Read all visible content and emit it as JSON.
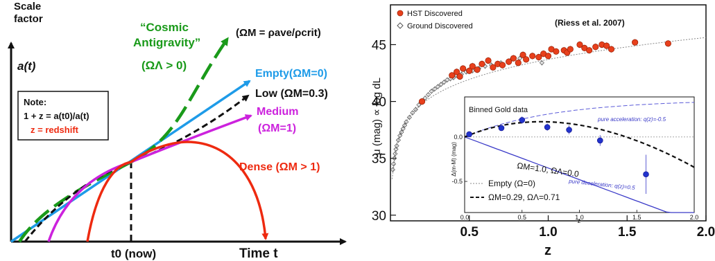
{
  "chart_data": [
    {
      "type": "line",
      "panel": "left",
      "ylabel_line1": "Scale",
      "ylabel_line2": "factor",
      "ylabel_symbol": "a(t)",
      "xlabel": "Time t",
      "t0_label": "t0 (now)",
      "formula": "(ΩM = ρave/ρcrit)",
      "note_title": "Note:",
      "note_line1": "1 + z = a(t0)/a(t)",
      "note_line2": "z = redshift",
      "colors": {
        "cosmic": "#1a9a1a",
        "empty": "#1e9be8",
        "low": "#111111",
        "medium": "#cc22dd",
        "dense": "#ee2a10"
      },
      "series": [
        {
          "name": "“Cosmic Antigravity” (ΩΛ > 0)",
          "label_line1": "“Cosmic",
          "label_line2": "Antigravity”",
          "label_line3": "(ΩΛ > 0)",
          "style": "dashed"
        },
        {
          "name": "Empty(ΩM=0)",
          "label_line1": "Empty(ΩM=0)",
          "style": "solid"
        },
        {
          "name": "Low (ΩM=0.3)",
          "label_line1": "Low (ΩM=0.3)",
          "style": "dashed"
        },
        {
          "name": "Medium (ΩM=1)",
          "label_line1": "Medium",
          "label_line2": "(ΩM=1)",
          "style": "solid"
        },
        {
          "name": "Dense (ΩM > 1)",
          "label_line1": "Dense (ΩM > 1)",
          "style": "solid"
        }
      ]
    },
    {
      "type": "scatter",
      "panel": "right",
      "xlabel": "z",
      "ylabel": "μ (mag) ∝ log dL",
      "xlim": [
        0,
        2.0
      ],
      "ylim": [
        29.5,
        48.5
      ],
      "xticks": [
        0.5,
        1.0,
        1.5,
        2.0
      ],
      "yticks": [
        30,
        35,
        40,
        45
      ],
      "citation": "(Riess et al. 2007)",
      "legend": [
        "HST Discovered",
        "Ground Discovered"
      ],
      "hst_points": [
        [
          0.2,
          40.0
        ],
        [
          0.39,
          42.3
        ],
        [
          0.42,
          42.6
        ],
        [
          0.44,
          42.2
        ],
        [
          0.46,
          42.9
        ],
        [
          0.5,
          42.7
        ],
        [
          0.52,
          43.1
        ],
        [
          0.55,
          42.8
        ],
        [
          0.58,
          43.3
        ],
        [
          0.62,
          43.6
        ],
        [
          0.65,
          43.0
        ],
        [
          0.68,
          43.3
        ],
        [
          0.71,
          43.2
        ],
        [
          0.75,
          43.5
        ],
        [
          0.78,
          43.8
        ],
        [
          0.81,
          43.4
        ],
        [
          0.84,
          44.1
        ],
        [
          0.86,
          43.7
        ],
        [
          0.9,
          44.0
        ],
        [
          0.94,
          43.9
        ],
        [
          0.97,
          44.2
        ],
        [
          1.0,
          44.0
        ],
        [
          1.02,
          44.6
        ],
        [
          1.05,
          44.4
        ],
        [
          1.1,
          44.5
        ],
        [
          1.12,
          44.3
        ],
        [
          1.14,
          44.6
        ],
        [
          1.2,
          45.0
        ],
        [
          1.23,
          44.7
        ],
        [
          1.26,
          44.5
        ],
        [
          1.3,
          44.8
        ],
        [
          1.34,
          45.0
        ],
        [
          1.37,
          44.9
        ],
        [
          1.4,
          44.6
        ],
        [
          1.55,
          45.2
        ],
        [
          1.76,
          45.1
        ]
      ],
      "ground_points": [
        [
          0.015,
          34.0
        ],
        [
          0.02,
          34.5
        ],
        [
          0.025,
          35.0
        ],
        [
          0.03,
          35.4
        ],
        [
          0.035,
          35.8
        ],
        [
          0.04,
          36.1
        ],
        [
          0.05,
          36.6
        ],
        [
          0.06,
          37.0
        ],
        [
          0.07,
          37.3
        ],
        [
          0.08,
          37.6
        ],
        [
          0.09,
          37.9
        ],
        [
          0.1,
          38.2
        ],
        [
          0.12,
          38.6
        ],
        [
          0.14,
          39.0
        ],
        [
          0.16,
          39.3
        ],
        [
          0.18,
          39.7
        ],
        [
          0.2,
          40.0
        ],
        [
          0.22,
          40.3
        ],
        [
          0.24,
          40.6
        ],
        [
          0.26,
          40.9
        ],
        [
          0.28,
          41.1
        ],
        [
          0.3,
          41.3
        ],
        [
          0.32,
          41.5
        ],
        [
          0.34,
          41.7
        ],
        [
          0.36,
          41.9
        ],
        [
          0.38,
          42.0
        ],
        [
          0.4,
          42.1
        ],
        [
          0.42,
          42.3
        ],
        [
          0.45,
          42.4
        ],
        [
          0.48,
          42.6
        ],
        [
          0.52,
          42.7
        ],
        [
          0.56,
          42.9
        ],
        [
          0.6,
          43.1
        ],
        [
          0.64,
          43.2
        ],
        [
          0.7,
          43.4
        ],
        [
          0.76,
          43.6
        ],
        [
          0.82,
          43.8
        ],
        [
          0.9,
          44.0
        ],
        [
          0.96,
          43.4
        ]
      ],
      "fit_curve_label": "",
      "inset": {
        "title": "Binned Gold data",
        "xlabel": "z",
        "ylabel": "Δ(m-M) (mag)",
        "xlim": [
          0,
          2.0
        ],
        "ylim": [
          -0.85,
          0.45
        ],
        "xticks": [
          0.0,
          0.5,
          1.0,
          1.5,
          2.0
        ],
        "yticks": [
          -0.5,
          0.0
        ],
        "binned_points": [
          {
            "z": 0.04,
            "y": 0.03,
            "err": 0.02
          },
          {
            "z": 0.32,
            "y": 0.1,
            "err": 0.03
          },
          {
            "z": 0.5,
            "y": 0.19,
            "err": 0.04
          },
          {
            "z": 0.72,
            "y": 0.11,
            "err": 0.04
          },
          {
            "z": 0.91,
            "y": 0.08,
            "err": 0.05
          },
          {
            "z": 1.18,
            "y": -0.04,
            "err": 0.06
          },
          {
            "z": 1.58,
            "y": -0.42,
            "err": 0.22
          }
        ],
        "curve_labels": {
          "acceleration": "pure acceleration: q(z)=-0.5",
          "deceleration": "pure deceleration: q(z)=0.5",
          "flat_model": "ΩM=1.0, ΩΛ=0.0"
        },
        "legend": [
          "Empty (Ω=0)",
          "ΩM=0.29, ΩΛ=0.71"
        ]
      }
    }
  ]
}
